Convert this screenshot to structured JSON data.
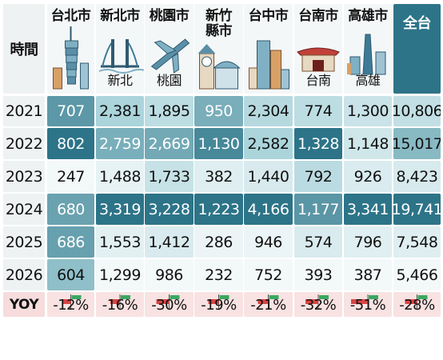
{
  "chart_data": {
    "type": "table",
    "corner_label": "時間",
    "columns": [
      {
        "label": "台北市",
        "sub": "",
        "icon": "taipei-101-icon"
      },
      {
        "label": "新北市",
        "sub": "新北",
        "icon": "bridge-icon"
      },
      {
        "label": "桃園市",
        "sub": "桃園",
        "icon": "airplane-icon"
      },
      {
        "label": "新竹縣市",
        "sub": "",
        "icon": "clock-tower-icon"
      },
      {
        "label": "台中市",
        "sub": "",
        "icon": "city-buildings-icon"
      },
      {
        "label": "台南市",
        "sub": "台南",
        "icon": "temple-gate-icon"
      },
      {
        "label": "高雄市",
        "sub": "高雄",
        "icon": "skyline-icon"
      },
      {
        "label": "全台",
        "sub": "",
        "icon": ""
      }
    ],
    "rows": [
      {
        "year": "2021",
        "values": [
          707,
          2381,
          1895,
          950,
          2304,
          774,
          1300,
          10806
        ]
      },
      {
        "year": "2022",
        "values": [
          802,
          2759,
          2669,
          1130,
          2582,
          1328,
          1148,
          15017
        ]
      },
      {
        "year": "2023",
        "values": [
          247,
          1488,
          1733,
          382,
          1440,
          792,
          926,
          8423
        ]
      },
      {
        "year": "2024",
        "values": [
          680,
          3319,
          3228,
          1223,
          4166,
          1177,
          3341,
          19741
        ]
      },
      {
        "year": "2025",
        "values": [
          686,
          1553,
          1412,
          286,
          946,
          574,
          796,
          7548
        ]
      },
      {
        "year": "2026",
        "values": [
          604,
          1299,
          986,
          232,
          752,
          393,
          387,
          5466
        ]
      }
    ],
    "yoy_label": "YOY",
    "yoy": [
      "-12%",
      "-16%",
      "-30%",
      "-19%",
      "-21%",
      "-32%",
      "-51%",
      "-28%"
    ],
    "colors": {
      "light": "#f3f8f9",
      "mid": "#a9d3da",
      "dark": "#2d7488",
      "total_header": "#2d7488",
      "yoy_bg": "#f8e2e2",
      "bar_red": "#d84545",
      "bar_green": "#3aa860"
    }
  }
}
